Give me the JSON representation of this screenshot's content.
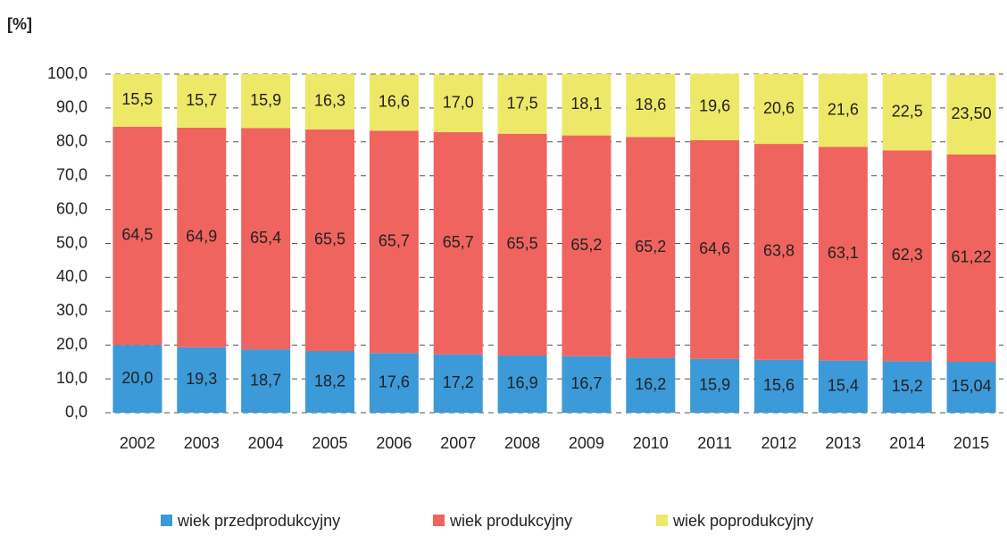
{
  "chart_data": {
    "type": "stacked_bar",
    "y_label": "[%]",
    "categories": [
      "2002",
      "2003",
      "2004",
      "2005",
      "2006",
      "2007",
      "2008",
      "2009",
      "2010",
      "2011",
      "2012",
      "2013",
      "2014",
      "2015"
    ],
    "series": [
      {
        "name": "wiek przedprodukcyjny",
        "color": "#3c9ad9",
        "values": [
          20.0,
          19.3,
          18.7,
          18.2,
          17.6,
          17.2,
          16.9,
          16.7,
          16.2,
          15.9,
          15.6,
          15.4,
          15.2,
          15.04
        ],
        "value_labels": [
          "20,0",
          "19,3",
          "18,7",
          "18,2",
          "17,6",
          "17,2",
          "16,9",
          "16,7",
          "16,2",
          "15,9",
          "15,6",
          "15,4",
          "15,2",
          "15,04"
        ]
      },
      {
        "name": "wiek produkcyjny",
        "color": "#f0645f",
        "values": [
          64.5,
          64.9,
          65.4,
          65.5,
          65.7,
          65.7,
          65.5,
          65.2,
          65.2,
          64.6,
          63.8,
          63.1,
          62.3,
          61.22
        ],
        "value_labels": [
          "64,5",
          "64,9",
          "65,4",
          "65,5",
          "65,7",
          "65,7",
          "65,5",
          "65,2",
          "65,2",
          "64,6",
          "63,8",
          "63,1",
          "62,3",
          "61,22"
        ]
      },
      {
        "name": "wiek poprodukcyjny",
        "color": "#eee868",
        "values": [
          15.5,
          15.7,
          15.9,
          16.3,
          16.6,
          17.0,
          17.5,
          18.1,
          18.6,
          19.6,
          20.6,
          21.6,
          22.5,
          23.5
        ],
        "value_labels": [
          "15,5",
          "15,7",
          "15,9",
          "16,3",
          "16,6",
          "17,0",
          "17,5",
          "18,1",
          "18,6",
          "19,6",
          "20,6",
          "21,6",
          "22,5",
          "23,50"
        ]
      }
    ],
    "ylim": [
      0,
      100
    ],
    "yticks": [
      {
        "value": 0,
        "label": "0,0"
      },
      {
        "value": 10,
        "label": "10,0"
      },
      {
        "value": 20,
        "label": "20,0"
      },
      {
        "value": 30,
        "label": "30,0"
      },
      {
        "value": 40,
        "label": "40,0"
      },
      {
        "value": 50,
        "label": "50,0"
      },
      {
        "value": 60,
        "label": "60,0"
      },
      {
        "value": 70,
        "label": "70,0"
      },
      {
        "value": 80,
        "label": "80,0"
      },
      {
        "value": 90,
        "label": "90,0"
      },
      {
        "value": 100,
        "label": "100,0"
      }
    ],
    "grid": true,
    "legend": "bottom"
  }
}
